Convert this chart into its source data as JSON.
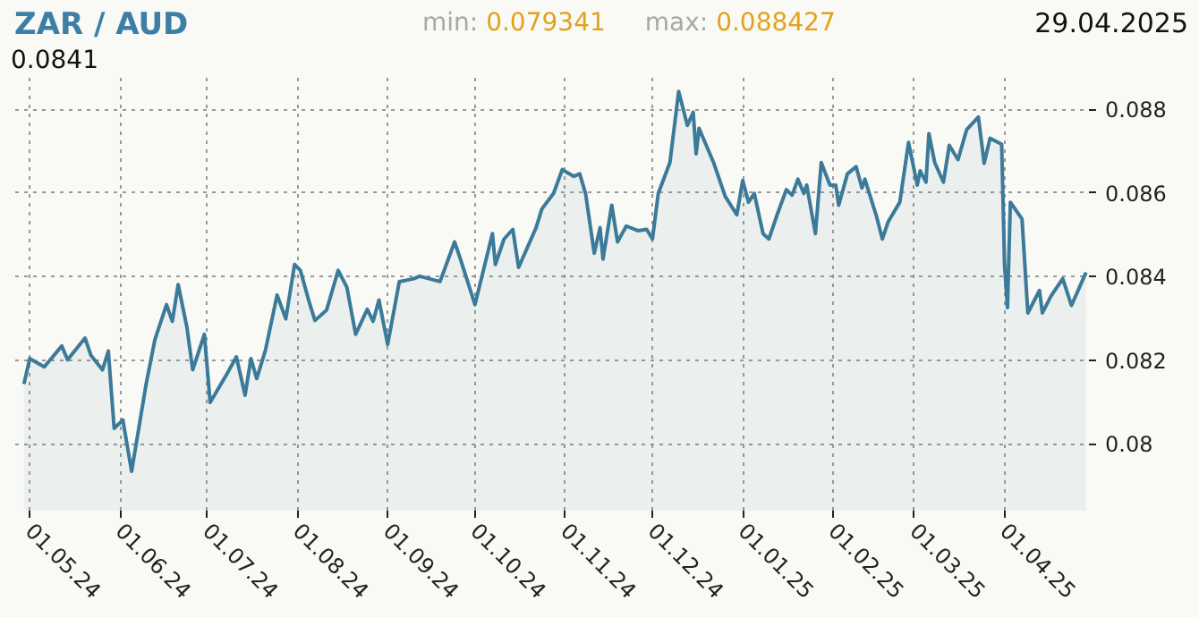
{
  "chart_data": {
    "type": "area",
    "title": "ZAR / AUD",
    "annotations": [
      "min:",
      "0.079341",
      "max:",
      "0.088427",
      "29.04.2025",
      "0.0841"
    ],
    "x": [
      "2024-04-29",
      "2024-05-01",
      "2024-05-06",
      "2024-05-12",
      "2024-05-14",
      "2024-05-20",
      "2024-05-22",
      "2024-05-26",
      "2024-05-28",
      "2024-05-30",
      "2024-06-02",
      "2024-06-05",
      "2024-06-10",
      "2024-06-13",
      "2024-06-17",
      "2024-06-19",
      "2024-06-21",
      "2024-06-24",
      "2024-06-26",
      "2024-06-30",
      "2024-07-02",
      "2024-07-08",
      "2024-07-11",
      "2024-07-14",
      "2024-07-16",
      "2024-07-18",
      "2024-07-21",
      "2024-07-25",
      "2024-07-28",
      "2024-07-31",
      "2024-08-02",
      "2024-08-05",
      "2024-08-07",
      "2024-08-11",
      "2024-08-15",
      "2024-08-18",
      "2024-08-21",
      "2024-08-25",
      "2024-08-27",
      "2024-08-29",
      "2024-09-01",
      "2024-09-05",
      "2024-09-10",
      "2024-09-12",
      "2024-09-19",
      "2024-09-24",
      "2024-09-26",
      "2024-10-01",
      "2024-10-07",
      "2024-10-08",
      "2024-10-11",
      "2024-10-14",
      "2024-10-16",
      "2024-10-22",
      "2024-10-24",
      "2024-10-28",
      "2024-10-31",
      "2024-11-04",
      "2024-11-06",
      "2024-11-08",
      "2024-11-11",
      "2024-11-13",
      "2024-11-14",
      "2024-11-17",
      "2024-11-19",
      "2024-11-22",
      "2024-11-26",
      "2024-11-29",
      "2024-12-01",
      "2024-12-03",
      "2024-12-07",
      "2024-12-10",
      "2024-12-13",
      "2024-12-15",
      "2024-12-16",
      "2024-12-17",
      "2024-12-22",
      "2024-12-26",
      "2024-12-30",
      "2025-01-01",
      "2025-01-03",
      "2025-01-05",
      "2025-01-08",
      "2025-01-10",
      "2025-01-13",
      "2025-01-16",
      "2025-01-18",
      "2025-01-20",
      "2025-01-22",
      "2025-01-23",
      "2025-01-26",
      "2025-01-28",
      "2025-01-31",
      "2025-02-02",
      "2025-02-03",
      "2025-02-06",
      "2025-02-09",
      "2025-02-11",
      "2025-02-12",
      "2025-02-16",
      "2025-02-18",
      "2025-02-20",
      "2025-02-24",
      "2025-02-27",
      "2025-03-02",
      "2025-03-03",
      "2025-03-05",
      "2025-03-06",
      "2025-03-08",
      "2025-03-11",
      "2025-03-13",
      "2025-03-16",
      "2025-03-19",
      "2025-03-23",
      "2025-03-25",
      "2025-03-27",
      "2025-03-31",
      "2025-04-01",
      "2025-04-02",
      "2025-04-03",
      "2025-04-07",
      "2025-04-09",
      "2025-04-13",
      "2025-04-14",
      "2025-04-17",
      "2025-04-21",
      "2025-04-24",
      "2025-04-29"
    ],
    "series": [
      {
        "color": "#3b7a99",
        "values": [
          0.08143,
          0.08204,
          0.08184,
          0.08234,
          0.08201,
          0.08253,
          0.08212,
          0.08177,
          0.08222,
          0.08037,
          0.08057,
          0.07934,
          0.08143,
          0.08249,
          0.08333,
          0.08293,
          0.08381,
          0.08279,
          0.08177,
          0.08262,
          0.08099,
          0.0817,
          0.08208,
          0.08116,
          0.08204,
          0.08156,
          0.08224,
          0.08356,
          0.08299,
          0.08429,
          0.08415,
          0.0834,
          0.08295,
          0.0832,
          0.08415,
          0.08374,
          0.08262,
          0.08322,
          0.08293,
          0.08344,
          0.08238,
          0.08388,
          0.08395,
          0.08401,
          0.08388,
          0.08483,
          0.08442,
          0.08333,
          0.08503,
          0.08429,
          0.0849,
          0.08513,
          0.08422,
          0.08517,
          0.08562,
          0.08599,
          0.08656,
          0.0864,
          0.08646,
          0.08599,
          0.08456,
          0.08517,
          0.08442,
          0.08571,
          0.08483,
          0.08521,
          0.0851,
          0.08513,
          0.0849,
          0.08599,
          0.08673,
          0.08843,
          0.08762,
          0.08793,
          0.08694,
          0.08755,
          0.08673,
          0.08592,
          0.08548,
          0.0863,
          0.08578,
          0.08599,
          0.08503,
          0.0849,
          0.08551,
          0.08608,
          0.08595,
          0.08633,
          0.08599,
          0.08619,
          0.08503,
          0.08673,
          0.08619,
          0.08619,
          0.08571,
          0.08646,
          0.08663,
          0.08612,
          0.08633,
          0.08544,
          0.0849,
          0.08531,
          0.08578,
          0.08721,
          0.08619,
          0.08653,
          0.08626,
          0.08742,
          0.08673,
          0.08626,
          0.08714,
          0.0868,
          0.08752,
          0.08782,
          0.08671,
          0.08731,
          0.08717,
          0.08429,
          0.08326,
          0.08578,
          0.08538,
          0.08313,
          0.08367,
          0.08313,
          0.08354,
          0.08395,
          0.08331,
          0.0841
        ]
      }
    ],
    "xlim": [
      "2024-04-26",
      "2025-04-30"
    ],
    "xticks": [
      {
        "value": "2024-05-01",
        "label": "01.05.24"
      },
      {
        "value": "2024-06-01",
        "label": "01.06.24"
      },
      {
        "value": "2024-07-01",
        "label": "01.07.24"
      },
      {
        "value": "2024-08-01",
        "label": "01.08.24"
      },
      {
        "value": "2024-09-01",
        "label": "01.09.24"
      },
      {
        "value": "2024-10-01",
        "label": "01.10.24"
      },
      {
        "value": "2024-11-01",
        "label": "01.11.24"
      },
      {
        "value": "2024-12-01",
        "label": "01.12.24"
      },
      {
        "value": "2025-01-01",
        "label": "01.01.25"
      },
      {
        "value": "2025-02-01",
        "label": "01.02.25"
      },
      {
        "value": "2025-03-01",
        "label": "01.03.25"
      },
      {
        "value": "2025-04-01",
        "label": "01.04.25"
      }
    ],
    "ylim": [
      0.0784,
      0.0888
    ],
    "yticks": [
      0.08,
      0.082,
      0.084,
      0.086,
      0.088
    ],
    "grid": true
  }
}
